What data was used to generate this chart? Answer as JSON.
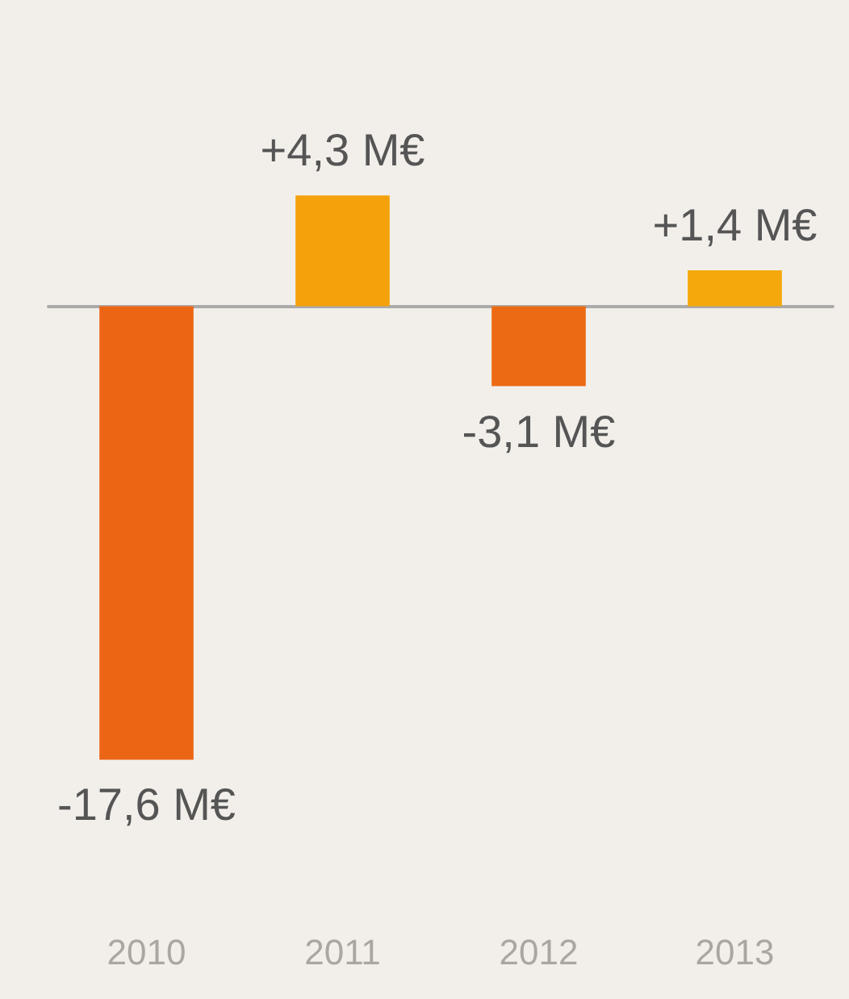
{
  "chart_data": {
    "type": "bar",
    "categories": [
      "2010",
      "2011",
      "2012",
      "2013"
    ],
    "values": [
      -17.6,
      4.3,
      -3.1,
      1.4
    ],
    "colors": [
      "#ec6514",
      "#f5a10c",
      "#ec6a14",
      "#f5a80c"
    ],
    "value_labels": [
      "-17,6 M€",
      "+4,3 M€",
      "-3,1 M€",
      "+1,4 M€"
    ]
  }
}
